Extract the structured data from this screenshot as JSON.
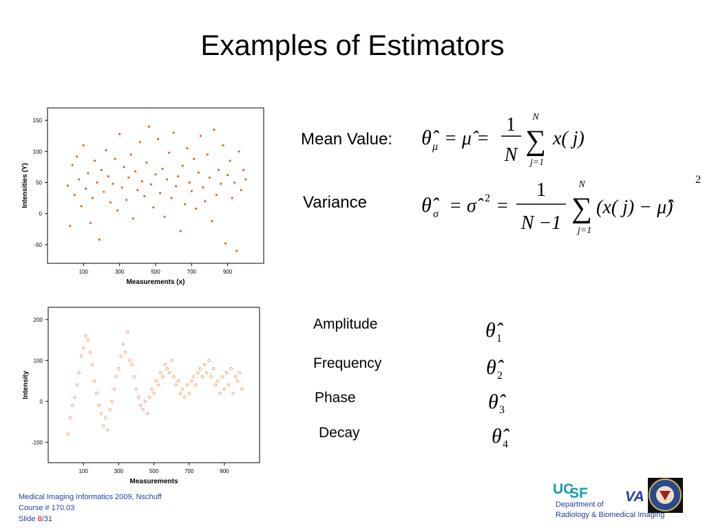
{
  "title": "Examples of Estimators",
  "formulas": {
    "mean": {
      "label": "Mean Value:",
      "estimator": "θ̂",
      "estimator_sub": "μ",
      "equals": "= μ̂ =",
      "numerator": "1",
      "denominator": "N",
      "sum": "∑",
      "sum_upper": "N",
      "sum_lower": "j=1",
      "term": "x( j)"
    },
    "variance": {
      "label": "Variance",
      "estimator": "θ̂",
      "estimator_sub": "σ",
      "equals": "= σ̂",
      "power": "2",
      "equals2": "=",
      "numerator": "1",
      "denominator": "N −1",
      "sum": "∑",
      "sum_upper": "N",
      "sum_lower": "j=1",
      "term": "(x( j) − μ̂)",
      "term_power": "2"
    }
  },
  "parameters": [
    {
      "name": "Amplitude",
      "symbol": "θ̂",
      "subscript": "1"
    },
    {
      "name": "Frequency",
      "symbol": "θ̂",
      "subscript": "2"
    },
    {
      "name": "Phase",
      "symbol": "θ̂",
      "subscript": "3"
    },
    {
      "name": "Decay",
      "symbol": "θ̂",
      "subscript": "4"
    }
  ],
  "footer": {
    "course": "Medical Imaging Informatics 2009, Nschuff",
    "course_number": "Course # 170.03",
    "slide_label": "Slide ",
    "slide_number": "8",
    "slide_total": "/31"
  },
  "logos": {
    "uc": "UC",
    "sf": "SF",
    "department": "Department of",
    "radiology": "Radiology & Biomedical Imaging",
    "va": "VA"
  },
  "chart_data": [
    {
      "type": "scatter",
      "x_label": "Measurements (x)",
      "y_label": "Intensities (Y)",
      "color": "#e8681c",
      "marker": "filled",
      "xlim": [
        -100,
        1100
      ],
      "ylim": [
        -80,
        170
      ],
      "xticks": [
        100,
        300,
        500,
        700,
        900
      ],
      "yticks": [
        -50,
        0,
        50,
        100,
        150
      ],
      "x": [
        12,
        25,
        38,
        50,
        63,
        75,
        88,
        100,
        113,
        125,
        138,
        150,
        163,
        175,
        188,
        200,
        213,
        225,
        238,
        250,
        263,
        275,
        288,
        300,
        313,
        325,
        338,
        350,
        363,
        375,
        388,
        400,
        413,
        425,
        438,
        450,
        463,
        475,
        488,
        500,
        513,
        525,
        538,
        550,
        563,
        575,
        588,
        600,
        613,
        625,
        638,
        650,
        663,
        675,
        688,
        700,
        713,
        725,
        738,
        750,
        763,
        775,
        788,
        800,
        813,
        825,
        838,
        850,
        863,
        875,
        888,
        900,
        913,
        925,
        938,
        950,
        963,
        975,
        988,
        1000
      ],
      "y": [
        45,
        -20,
        78,
        30,
        92,
        55,
        12,
        110,
        40,
        65,
        -15,
        25,
        85,
        50,
        -42,
        70,
        35,
        102,
        60,
        18,
        48,
        88,
        5,
        128,
        42,
        75,
        22,
        58,
        95,
        -8,
        68,
        38,
        115,
        52,
        28,
        82,
        140,
        47,
        10,
        63,
        120,
        33,
        72,
        -5,
        55,
        98,
        25,
        130,
        44,
        60,
        -28,
        77,
        15,
        105,
        50,
        36,
        88,
        8,
        66,
        125,
        42,
        20,
        95,
        58,
        -12,
        135,
        30,
        70,
        48,
        110,
        -48,
        62,
        85,
        25,
        50,
        -60,
        100,
        38,
        70,
        55
      ]
    },
    {
      "type": "scatter",
      "x_label": "Measurements",
      "y_label": "Intensity",
      "color": "#f08a50",
      "marker": "open",
      "xlim": [
        -100,
        1100
      ],
      "ylim": [
        -150,
        230
      ],
      "xticks": [
        100,
        300,
        500,
        700,
        900
      ],
      "yticks": [
        -100,
        0,
        100,
        200
      ],
      "x": [
        12,
        25,
        38,
        50,
        63,
        75,
        88,
        100,
        113,
        125,
        138,
        150,
        163,
        175,
        188,
        200,
        213,
        225,
        238,
        250,
        263,
        275,
        288,
        300,
        313,
        325,
        338,
        350,
        363,
        375,
        388,
        400,
        413,
        425,
        438,
        450,
        463,
        475,
        488,
        500,
        513,
        525,
        538,
        550,
        563,
        575,
        588,
        600,
        613,
        625,
        638,
        650,
        663,
        675,
        688,
        700,
        713,
        725,
        738,
        750,
        763,
        775,
        788,
        800,
        813,
        825,
        838,
        850,
        863,
        875,
        888,
        900,
        913,
        925,
        938,
        950,
        963,
        975,
        988,
        1000
      ],
      "y": [
        -80,
        -40,
        -10,
        10,
        40,
        70,
        110,
        130,
        160,
        150,
        120,
        90,
        50,
        20,
        -10,
        -30,
        -60,
        -40,
        -70,
        -20,
        0,
        30,
        60,
        80,
        110,
        140,
        120,
        170,
        100,
        90,
        60,
        30,
        10,
        -10,
        -20,
        0,
        -30,
        10,
        30,
        20,
        50,
        40,
        70,
        60,
        90,
        80,
        70,
        100,
        60,
        40,
        50,
        20,
        30,
        10,
        40,
        20,
        50,
        60,
        40,
        70,
        80,
        60,
        90,
        70,
        100,
        60,
        80,
        40,
        50,
        20,
        60,
        30,
        70,
        40,
        80,
        20,
        60,
        50,
        70,
        30
      ]
    }
  ]
}
